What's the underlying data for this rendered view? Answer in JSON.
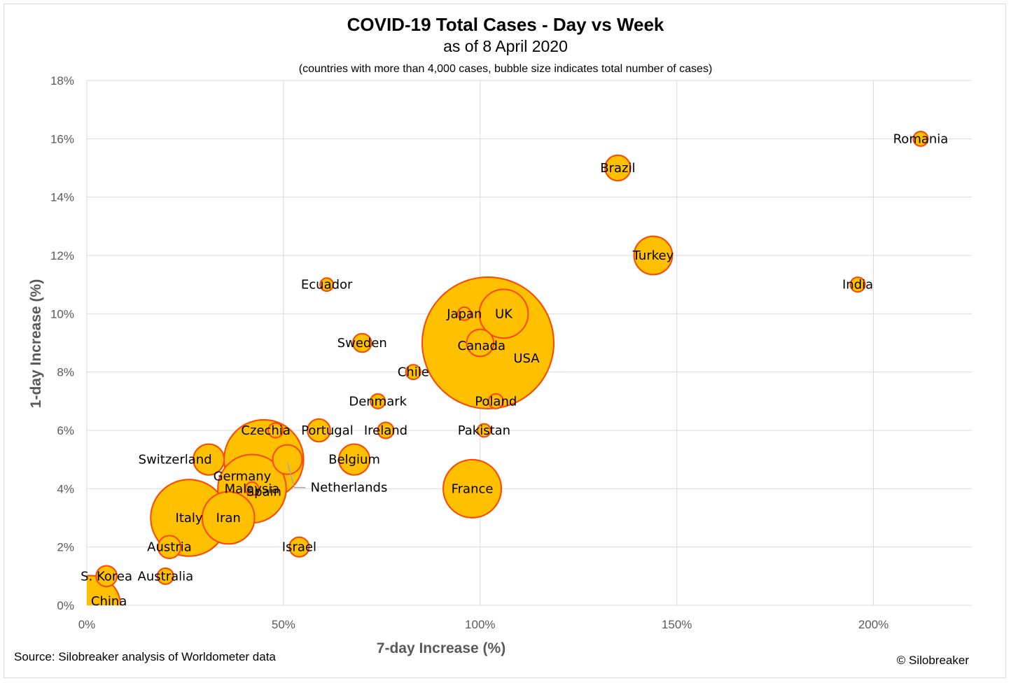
{
  "chart_data": {
    "type": "scatter",
    "subtype": "bubble",
    "title": "COVID-19 Total Cases - Day vs Week",
    "subtitle": "as of 8 April 2020",
    "note": "(countries with more than 4,000 cases, bubble size indicates total number of cases)",
    "xlabel": "7-day Increase (%)",
    "ylabel": "1-day Increase (%)",
    "xlim": [
      0,
      225
    ],
    "ylim": [
      0,
      18
    ],
    "xticks": [
      "0%",
      "50%",
      "100%",
      "150%",
      "200%"
    ],
    "yticks": [
      "0%",
      "2%",
      "4%",
      "6%",
      "8%",
      "10%",
      "12%",
      "14%",
      "16%",
      "18%"
    ],
    "grid": true,
    "bubble_fill": "#FFC000",
    "bubble_stroke": "#FF4500",
    "points": [
      {
        "label": "USA",
        "x": 102,
        "y": 9,
        "size": 400000
      },
      {
        "label": "Spain",
        "x": 45,
        "y": 5,
        "size": 146000
      },
      {
        "label": "Italy",
        "x": 26,
        "y": 3,
        "size": 136000
      },
      {
        "label": "Germany",
        "x": 42,
        "y": 4,
        "size": 108000
      },
      {
        "label": "France",
        "x": 98,
        "y": 4,
        "size": 78000
      },
      {
        "label": "Iran",
        "x": 36,
        "y": 3,
        "size": 63000
      },
      {
        "label": "UK",
        "x": 106,
        "y": 10,
        "size": 55000
      },
      {
        "label": "Turkey",
        "x": 144,
        "y": 12,
        "size": 34000
      },
      {
        "label": "Switzerland",
        "x": 31,
        "y": 5,
        "size": 22000
      },
      {
        "label": "Belgium",
        "x": 68,
        "y": 5,
        "size": 22000
      },
      {
        "label": "Netherlands",
        "x": 51,
        "y": 5,
        "size": 20000
      },
      {
        "label": "Canada",
        "x": 100,
        "y": 9,
        "size": 17000
      },
      {
        "label": "Portugal",
        "x": 59,
        "y": 6,
        "size": 12000
      },
      {
        "label": "Austria",
        "x": 21,
        "y": 2,
        "size": 12000
      },
      {
        "label": "Brazil",
        "x": 135,
        "y": 15,
        "size": 15000
      },
      {
        "label": "S. Korea",
        "x": 5,
        "y": 1,
        "size": 10000
      },
      {
        "label": "Sweden",
        "x": 70,
        "y": 9,
        "size": 8000
      },
      {
        "label": "Israel",
        "x": 54,
        "y": 2,
        "size": 9000
      },
      {
        "label": "China",
        "x": 1,
        "y": 0,
        "size": 82000
      },
      {
        "label": "Czechia",
        "x": 48,
        "y": 6,
        "size": 5000
      },
      {
        "label": "Ireland",
        "x": 76,
        "y": 6,
        "size": 6000
      },
      {
        "label": "Denmark",
        "x": 74,
        "y": 7,
        "size": 5000
      },
      {
        "label": "Chile",
        "x": 83,
        "y": 8,
        "size": 5000
      },
      {
        "label": "Poland",
        "x": 104,
        "y": 7,
        "size": 5000
      },
      {
        "label": "Romania",
        "x": 212,
        "y": 16,
        "size": 5000
      },
      {
        "label": "Australia",
        "x": 20,
        "y": 1,
        "size": 6000
      },
      {
        "label": "Ecuador",
        "x": 61,
        "y": 11,
        "size": 4000
      },
      {
        "label": "India",
        "x": 196,
        "y": 11,
        "size": 5000
      },
      {
        "label": "Pakistan",
        "x": 101,
        "y": 6,
        "size": 4000
      },
      {
        "label": "Japan",
        "x": 96,
        "y": 10,
        "size": 4000
      },
      {
        "label": "Malaysia",
        "x": 42,
        "y": 4,
        "size": 4000
      }
    ]
  },
  "source": "Source: Silobreaker analysis of Worldometer data",
  "copyright": "© Silobreaker"
}
